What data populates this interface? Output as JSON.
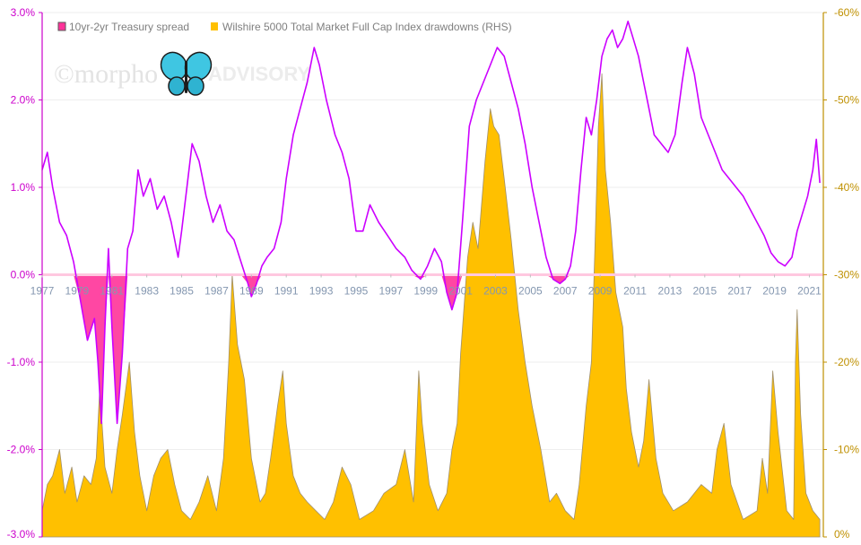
{
  "chart_data": {
    "type": "line",
    "title": "",
    "legend": {
      "position": "top-left",
      "items": [
        {
          "label": "10yr-2yr Treasury spread",
          "color": "#ff3399"
        },
        {
          "label": "Wilshire 5000 Total Market Full Cap Index drawdowns (RHS)",
          "color": "#ffc000"
        }
      ]
    },
    "watermark": {
      "left": "©morpho",
      "right": "ADVISORY"
    },
    "grid": true,
    "x_axis": {
      "range": [
        1977,
        2021.8
      ],
      "tick_values": [
        1977,
        1979,
        1981,
        1983,
        1985,
        1987,
        1989,
        1991,
        1993,
        1995,
        1997,
        1999,
        2001,
        2003,
        2005,
        2007,
        2009,
        2011,
        2013,
        2015,
        2017,
        2019,
        2021
      ],
      "tick_labels": [
        "1977",
        "1979",
        "1981",
        "1983",
        "1985",
        "1987",
        "1989",
        "1991",
        "1993",
        "1995",
        "1997",
        "1999",
        "2001",
        "2003",
        "2005",
        "2007",
        "2009",
        "2011",
        "2013",
        "2015",
        "2017",
        "2019",
        "2021"
      ],
      "label_color": "#8497b0"
    },
    "y_left": {
      "range": [
        -3.0,
        3.0
      ],
      "tick_values": [
        3,
        2,
        1,
        0,
        -1,
        -2,
        -3
      ],
      "tick_labels": [
        "3.0%",
        "2.0%",
        "1.0%",
        "0.0%",
        "-1.0%",
        "-2.0%",
        "-3.0%"
      ],
      "color": "#cc00cc"
    },
    "y_right": {
      "range": [
        0,
        -60
      ],
      "tick_values": [
        -60,
        -50,
        -40,
        -30,
        -20,
        -10,
        0
      ],
      "tick_labels": [
        "-60%",
        "-50%",
        "-40%",
        "-30%",
        "-20%",
        "-10%",
        "0%"
      ],
      "color": "#bf9000"
    },
    "series": [
      {
        "name": "10yr-2yr Treasury spread",
        "axis": "left",
        "line_color": "#cc00ff",
        "negative_fill": "#ff3399",
        "x": [
          1977.0,
          1977.3,
          1977.6,
          1978.0,
          1978.4,
          1978.8,
          1979.2,
          1979.6,
          1980.0,
          1980.2,
          1980.4,
          1980.6,
          1980.8,
          1981.0,
          1981.3,
          1981.6,
          1981.9,
          1982.2,
          1982.5,
          1982.8,
          1983.2,
          1983.6,
          1984.0,
          1984.4,
          1984.8,
          1985.0,
          1985.3,
          1985.6,
          1986.0,
          1986.4,
          1986.8,
          1987.2,
          1987.6,
          1988.0,
          1988.4,
          1988.8,
          1989.0,
          1989.3,
          1989.6,
          1989.9,
          1990.3,
          1990.7,
          1991.0,
          1991.4,
          1991.8,
          1992.2,
          1992.6,
          1992.9,
          1993.3,
          1993.8,
          1994.2,
          1994.6,
          1995.0,
          1995.4,
          1995.8,
          1996.3,
          1996.8,
          1997.3,
          1997.8,
          1998.2,
          1998.7,
          1999.1,
          1999.5,
          1999.9,
          2000.2,
          2000.5,
          2000.8,
          2001.1,
          2001.5,
          2001.9,
          2002.3,
          2002.7,
          2003.1,
          2003.5,
          2003.9,
          2004.3,
          2004.7,
          2005.1,
          2005.5,
          2005.9,
          2006.3,
          2006.7,
          2007.0,
          2007.3,
          2007.6,
          2007.9,
          2008.2,
          2008.5,
          2008.8,
          2009.1,
          2009.4,
          2009.7,
          2010.0,
          2010.3,
          2010.6,
          2010.9,
          2011.2,
          2011.5,
          2011.8,
          2012.1,
          2012.5,
          2012.9,
          2013.3,
          2013.7,
          2014.0,
          2014.4,
          2014.8,
          2015.2,
          2015.6,
          2016.0,
          2016.4,
          2016.8,
          2017.2,
          2017.6,
          2018.0,
          2018.4,
          2018.8,
          2019.2,
          2019.6,
          2020.0,
          2020.3,
          2020.6,
          2020.9,
          2021.2,
          2021.4,
          2021.6
        ],
        "values": [
          1.2,
          1.4,
          1.0,
          0.6,
          0.45,
          0.15,
          -0.3,
          -0.75,
          -0.5,
          -1.0,
          -1.7,
          -0.6,
          0.3,
          -0.6,
          -1.7,
          -0.9,
          0.3,
          0.5,
          1.2,
          0.9,
          1.1,
          0.75,
          0.9,
          0.6,
          0.2,
          0.5,
          1.0,
          1.5,
          1.3,
          0.9,
          0.6,
          0.8,
          0.5,
          0.4,
          0.15,
          -0.1,
          -0.25,
          -0.1,
          0.1,
          0.2,
          0.3,
          0.6,
          1.1,
          1.6,
          1.9,
          2.2,
          2.6,
          2.4,
          2.0,
          1.6,
          1.4,
          1.1,
          0.5,
          0.5,
          0.8,
          0.6,
          0.45,
          0.3,
          0.2,
          0.05,
          -0.05,
          0.1,
          0.3,
          0.15,
          -0.2,
          -0.4,
          -0.2,
          0.6,
          1.7,
          2.0,
          2.2,
          2.4,
          2.6,
          2.5,
          2.2,
          1.9,
          1.5,
          1.0,
          0.6,
          0.2,
          -0.05,
          -0.1,
          -0.05,
          0.1,
          0.5,
          1.2,
          1.8,
          1.6,
          2.0,
          2.5,
          2.7,
          2.8,
          2.6,
          2.7,
          2.9,
          2.7,
          2.5,
          2.2,
          1.9,
          1.6,
          1.5,
          1.4,
          1.6,
          2.2,
          2.6,
          2.3,
          1.8,
          1.6,
          1.4,
          1.2,
          1.1,
          1.0,
          0.9,
          0.75,
          0.6,
          0.45,
          0.25,
          0.15,
          0.1,
          0.2,
          0.5,
          0.7,
          0.9,
          1.2,
          1.55,
          1.05
        ]
      },
      {
        "name": "Wilshire 5000 Total Market Full Cap Index drawdowns (RHS)",
        "axis": "right",
        "fill_color": "#ffc000",
        "edge_color": "#a08f6c",
        "x": [
          1977.0,
          1977.3,
          1977.6,
          1978.0,
          1978.3,
          1978.7,
          1979.0,
          1979.4,
          1979.8,
          1980.1,
          1980.3,
          1980.6,
          1981.0,
          1981.3,
          1981.6,
          1982.0,
          1982.3,
          1982.6,
          1983.0,
          1983.4,
          1983.8,
          1984.2,
          1984.6,
          1985.0,
          1985.5,
          1986.0,
          1986.5,
          1987.0,
          1987.4,
          1987.7,
          1987.9,
          1988.2,
          1988.6,
          1989.0,
          1989.5,
          1989.8,
          1990.1,
          1990.5,
          1990.8,
          1991.0,
          1991.4,
          1991.8,
          1992.2,
          1992.7,
          1993.2,
          1993.7,
          1994.2,
          1994.7,
          1995.2,
          1996.0,
          1996.6,
          1997.3,
          1997.8,
          1998.3,
          1998.6,
          1998.8,
          1999.2,
          1999.7,
          2000.2,
          2000.5,
          2000.8,
          2001.0,
          2001.4,
          2001.7,
          2002.0,
          2002.4,
          2002.7,
          2002.9,
          2003.2,
          2003.5,
          2003.9,
          2004.3,
          2004.7,
          2005.1,
          2005.6,
          2006.1,
          2006.5,
          2007.0,
          2007.5,
          2007.8,
          2008.2,
          2008.5,
          2008.7,
          2008.9,
          2009.1,
          2009.3,
          2009.6,
          2009.9,
          2010.3,
          2010.5,
          2010.8,
          2011.2,
          2011.5,
          2011.8,
          2012.2,
          2012.6,
          2013.2,
          2014.0,
          2014.8,
          2015.4,
          2015.7,
          2016.1,
          2016.5,
          2017.2,
          2018.0,
          2018.3,
          2018.6,
          2018.9,
          2019.2,
          2019.7,
          2020.1,
          2020.2,
          2020.3,
          2020.5,
          2020.8,
          2021.2,
          2021.6
        ],
        "values": [
          -3,
          -6,
          -7,
          -10,
          -5,
          -8,
          -4,
          -7,
          -6,
          -9,
          -17,
          -8,
          -5,
          -10,
          -14,
          -20,
          -12,
          -7,
          -3,
          -7,
          -9,
          -10,
          -6,
          -3,
          -2,
          -4,
          -7,
          -3,
          -9,
          -20,
          -30,
          -22,
          -18,
          -9,
          -4,
          -5,
          -9,
          -15,
          -19,
          -13,
          -7,
          -5,
          -4,
          -3,
          -2,
          -4,
          -8,
          -6,
          -2,
          -3,
          -5,
          -6,
          -10,
          -4,
          -19,
          -13,
          -6,
          -3,
          -5,
          -10,
          -13,
          -21,
          -32,
          -36,
          -33,
          -43,
          -49,
          -47,
          -46,
          -41,
          -34,
          -26,
          -20,
          -15,
          -10,
          -4,
          -5,
          -3,
          -2,
          -6,
          -15,
          -20,
          -33,
          -47,
          -53,
          -42,
          -36,
          -28,
          -24,
          -17,
          -12,
          -8,
          -11,
          -18,
          -9,
          -5,
          -3,
          -4,
          -6,
          -5,
          -10,
          -13,
          -6,
          -2,
          -3,
          -9,
          -5,
          -19,
          -12,
          -3,
          -2,
          -20,
          -26,
          -14,
          -5,
          -3,
          -2
        ]
      }
    ]
  }
}
